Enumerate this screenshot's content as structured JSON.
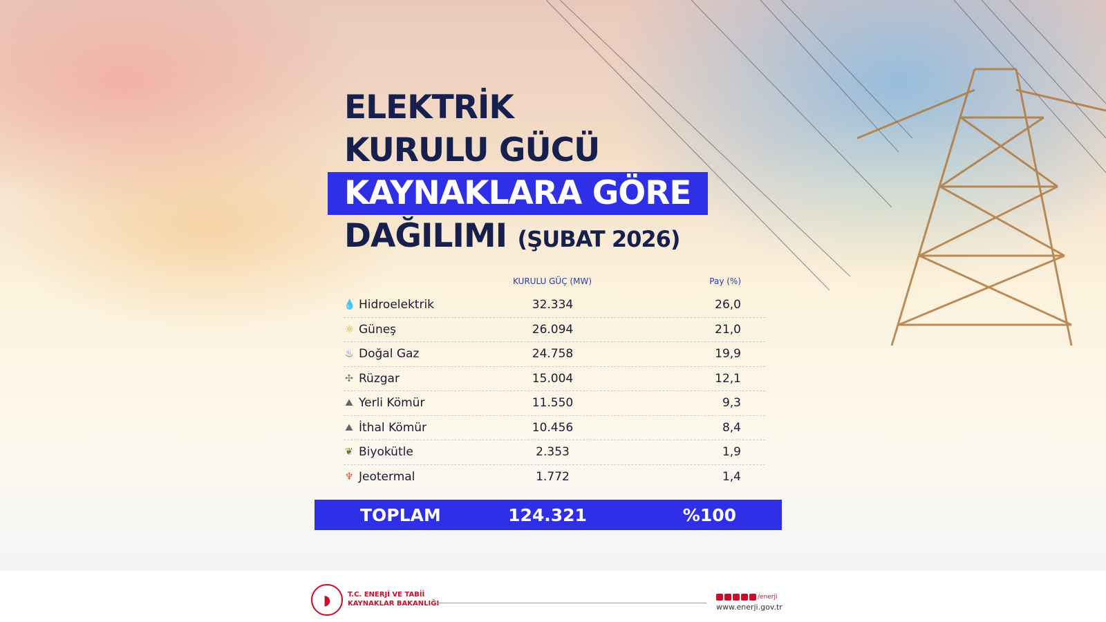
{
  "title": {
    "line1": "ELEKTRİK",
    "line2": "KURULU GÜCÜ",
    "line3": "KAYNAKLARA GÖRE",
    "line4": "DAĞILIMI",
    "period": "(ŞUBAT 2026)"
  },
  "table": {
    "headers": {
      "capacity": "KURULU GÜÇ (MW)",
      "share": "Pay (%)"
    },
    "rows": [
      {
        "source": "Hidroelektrik",
        "mw": "32.334",
        "pct": "26,0",
        "icon": "water-drop-icon"
      },
      {
        "source": "Güneş",
        "mw": "26.094",
        "pct": "21,0",
        "icon": "sun-icon"
      },
      {
        "source": "Doğal Gaz",
        "mw": "24.758",
        "pct": "19,9",
        "icon": "gas-flame-icon"
      },
      {
        "source": "Rüzgar",
        "mw": "15.004",
        "pct": "12,1",
        "icon": "wind-turbine-icon"
      },
      {
        "source": "Yerli Kömür",
        "mw": "11.550",
        "pct": "9,3",
        "icon": "coal-icon"
      },
      {
        "source": "İthal Kömür",
        "mw": "10.456",
        "pct": "8,4",
        "icon": "coal-icon"
      },
      {
        "source": "Biyokütle",
        "mw": "2.353",
        "pct": "1,9",
        "icon": "biomass-icon"
      },
      {
        "source": "Jeotermal",
        "mw": "1.772",
        "pct": "1,4",
        "icon": "geothermal-icon"
      }
    ],
    "total": {
      "label": "TOPLAM",
      "mw": "124.321",
      "pct": "%100"
    }
  },
  "footer": {
    "ministry_line1": "T.C. ENERJİ VE TABİİ",
    "ministry_line2": "KAYNAKLAR BAKANLIĞI",
    "social_handle": "/enerji",
    "website": "www.enerji.gov.tr"
  },
  "colors": {
    "accent": "#2f2fe8",
    "title": "#17204d",
    "brand": "#c8102e"
  }
}
